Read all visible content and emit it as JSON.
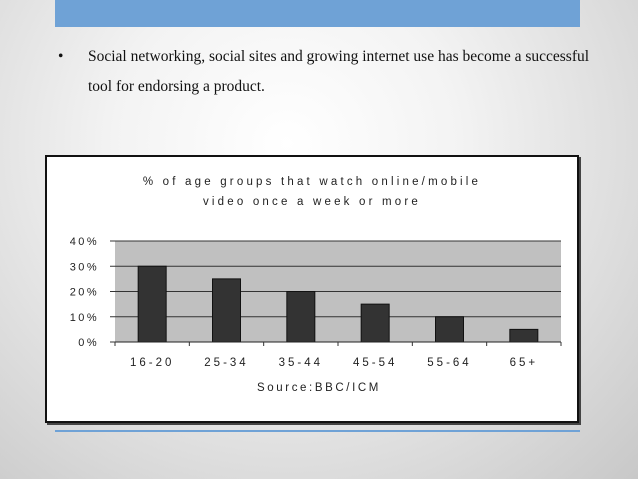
{
  "slide": {
    "bullet_symbol": "•",
    "bullet_text": "Social networking, social sites and  growing internet use has become a successful tool for endorsing a product."
  },
  "chart_data": {
    "type": "bar",
    "title_lines": [
      "% of age groups that watch online/mobile",
      "video once a week or more"
    ],
    "categories": [
      "16-20",
      "25-34",
      "35-44",
      "45-54",
      "55-64",
      "65+"
    ],
    "values": [
      30,
      25,
      20,
      15,
      10,
      5
    ],
    "ylim": [
      0,
      40
    ],
    "yticks": [
      0,
      10,
      20,
      30,
      40
    ],
    "ytick_labels": [
      "0%",
      "10%",
      "20%",
      "30%",
      "40%"
    ],
    "xlabel": "Source:BBC/ICM",
    "ylabel": "",
    "grid": true,
    "plot_background": "#c0c0c0",
    "bar_color": "#333333"
  }
}
